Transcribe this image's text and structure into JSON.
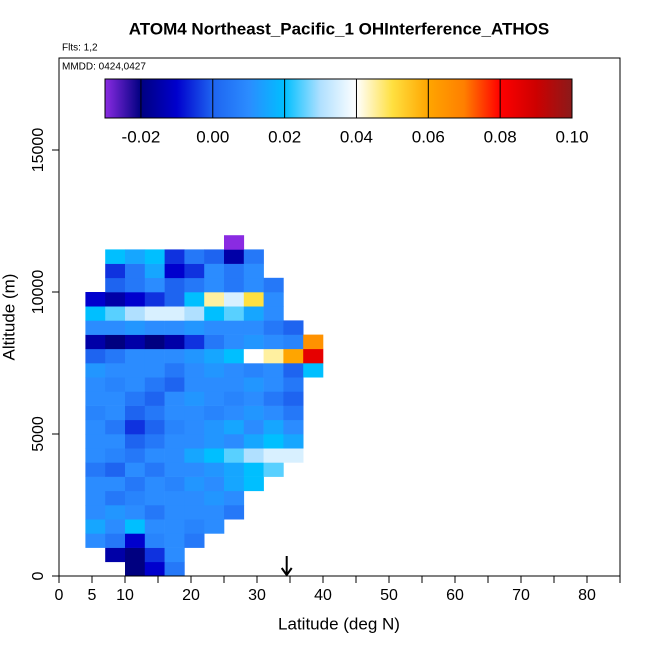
{
  "chart_data": {
    "type": "heatmap",
    "title": "ATOM4 Northeast_Pacific_1 OHInterference_ATHOS",
    "annotations": [
      "Flts: 1,2",
      "MMDD: 0424,0427"
    ],
    "x_label": "Latitude (deg N)",
    "y_label": "Altitude (m)",
    "xlim": [
      0,
      85
    ],
    "ylim": [
      0,
      18240
    ],
    "xticks": [
      0,
      5,
      10,
      20,
      30,
      40,
      50,
      60,
      70,
      80
    ],
    "xminorticks": [
      15,
      25,
      35,
      45,
      55,
      65,
      75,
      85
    ],
    "yticks": [
      0,
      5000,
      10000,
      15000
    ],
    "arrow_x": 34.5,
    "xbins": [
      4,
      7,
      10,
      13,
      16,
      19,
      22,
      25,
      28,
      31,
      34,
      37,
      40
    ],
    "ybins": [
      0,
      500,
      1000,
      1500,
      2000,
      2500,
      3000,
      3500,
      4000,
      4500,
      5000,
      5500,
      6000,
      6500,
      7000,
      7500,
      8000,
      8500,
      9000,
      9500,
      10000,
      10500,
      11000,
      11500,
      12000
    ],
    "z": [
      [
        null,
        null,
        -0.02,
        -0.01,
        0.005,
        null,
        null,
        null,
        null,
        null,
        null,
        null
      ],
      [
        null,
        -0.015,
        -0.02,
        -0.005,
        0.01,
        null,
        null,
        null,
        null,
        null,
        null,
        null
      ],
      [
        0.01,
        0.005,
        -0.01,
        0.008,
        0.01,
        0.005,
        null,
        null,
        null,
        null,
        null,
        null
      ],
      [
        0.015,
        0.01,
        0.02,
        0.01,
        0.01,
        0.008,
        0.01,
        null,
        null,
        null,
        null,
        null
      ],
      [
        0.01,
        0.012,
        0.01,
        0.005,
        0.01,
        0.01,
        0.01,
        0.005,
        null,
        null,
        null,
        null
      ],
      [
        0.01,
        0.005,
        0.008,
        0.01,
        0.01,
        0.01,
        0.012,
        0.01,
        null,
        null,
        null,
        null
      ],
      [
        0.01,
        0.01,
        0.005,
        0.01,
        0.008,
        0.012,
        0.01,
        0.015,
        0.02,
        null,
        null,
        null
      ],
      [
        0.005,
        0.0,
        0.01,
        0.005,
        0.01,
        0.01,
        0.012,
        0.015,
        0.02,
        0.025,
        null,
        null
      ],
      [
        0.01,
        0.008,
        0.005,
        0.01,
        0.01,
        0.015,
        0.02,
        0.025,
        0.03,
        0.035,
        0.035,
        null
      ],
      [
        0.01,
        0.01,
        0.0,
        0.005,
        0.01,
        0.01,
        0.012,
        0.01,
        0.015,
        0.02,
        0.015,
        null
      ],
      [
        0.01,
        0.005,
        -0.005,
        0.0,
        0.008,
        0.01,
        0.012,
        0.015,
        0.01,
        0.015,
        0.01,
        null
      ],
      [
        0.008,
        0.01,
        0.0,
        0.005,
        0.01,
        0.01,
        0.008,
        0.01,
        0.012,
        0.01,
        0.005,
        null
      ],
      [
        0.01,
        0.01,
        0.005,
        0.0,
        0.01,
        0.012,
        0.01,
        0.008,
        0.01,
        0.005,
        0.0,
        null
      ],
      [
        0.01,
        0.008,
        0.01,
        0.005,
        0.0,
        0.01,
        0.01,
        0.01,
        0.012,
        0.01,
        0.005,
        null
      ],
      [
        0.012,
        0.01,
        0.01,
        0.01,
        0.005,
        0.01,
        0.012,
        0.01,
        0.008,
        0.01,
        0.0,
        0.02
      ],
      [
        0.0,
        0.005,
        0.01,
        0.01,
        0.01,
        0.012,
        0.015,
        0.02,
        0.04,
        0.045,
        0.06,
        0.085
      ],
      [
        -0.015,
        -0.02,
        -0.015,
        -0.02,
        -0.015,
        -0.005,
        0.005,
        0.01,
        0.012,
        0.01,
        0.008,
        0.065
      ],
      [
        0.01,
        0.01,
        0.012,
        0.01,
        0.01,
        0.012,
        0.01,
        0.01,
        0.01,
        0.005,
        0.0,
        null
      ],
      [
        0.02,
        0.025,
        0.03,
        0.035,
        0.035,
        0.03,
        0.02,
        0.025,
        0.015,
        0.01,
        null,
        null
      ],
      [
        -0.01,
        -0.015,
        -0.01,
        -0.005,
        0.0,
        0.02,
        0.045,
        0.035,
        0.05,
        0.01,
        null,
        null
      ],
      [
        null,
        0.0,
        0.005,
        0.01,
        0.0,
        0.005,
        0.01,
        0.005,
        0.01,
        0.005,
        null,
        null
      ],
      [
        null,
        -0.005,
        0.005,
        0.015,
        -0.01,
        -0.005,
        0.01,
        0.005,
        0.01,
        null,
        null,
        null
      ],
      [
        null,
        0.02,
        0.015,
        0.02,
        -0.005,
        0.005,
        0.0,
        -0.015,
        0.005,
        null,
        null,
        null
      ],
      [
        null,
        null,
        null,
        null,
        null,
        null,
        null,
        -0.03,
        null,
        null,
        null,
        null
      ]
    ],
    "colorbar": {
      "lim": [
        -0.03,
        0.1
      ],
      "ticks": [
        -0.02,
        {
          "value": 0,
          "label": "0.00"
        },
        0.02,
        0.04,
        0.06,
        0.08,
        {
          "value": 0.1,
          "label": "0.10"
        }
      ],
      "colors": [
        "#8a2be2",
        "#000080",
        "#0000cd",
        "#1e64f0",
        "#2b8cff",
        "#00bfff",
        "#b0e0ff",
        "#ffffff",
        "#ffe040",
        "#ffa500",
        "#ff7f00",
        "#ff0000",
        "#cd0000",
        "#8b1a1a"
      ]
    }
  }
}
